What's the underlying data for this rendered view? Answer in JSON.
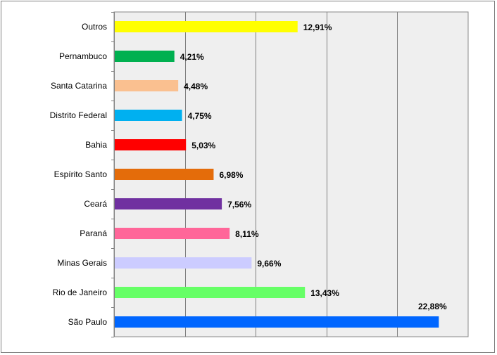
{
  "chart_data": {
    "type": "bar",
    "orientation": "horizontal",
    "title": "",
    "xlabel": "",
    "ylabel": "",
    "xlim": [
      0,
      25
    ],
    "grid": true,
    "legend": "none",
    "categories": [
      "São Paulo",
      "Rio de Janeiro",
      "Minas Gerais",
      "Paraná",
      "Ceará",
      "Espírito Santo",
      "Bahia",
      "Distrito Federal",
      "Santa Catarina",
      "Pernambuco",
      "Outros"
    ],
    "values": [
      22.88,
      13.43,
      9.66,
      8.11,
      7.56,
      6.98,
      5.03,
      4.75,
      4.48,
      4.21,
      12.91
    ],
    "labels": [
      "22,88%",
      "13,43%",
      "9,66%",
      "8,11%",
      "7,56%",
      "6,98%",
      "5,03%",
      "4,75%",
      "4,48%",
      "4,21%",
      "12,91%"
    ],
    "colors": [
      "#0066ff",
      "#66ff66",
      "#ccccff",
      "#ff6699",
      "#7030a0",
      "#e46c0a",
      "#ff0000",
      "#00b0f0",
      "#fac090",
      "#00b050",
      "#ffff00"
    ]
  }
}
